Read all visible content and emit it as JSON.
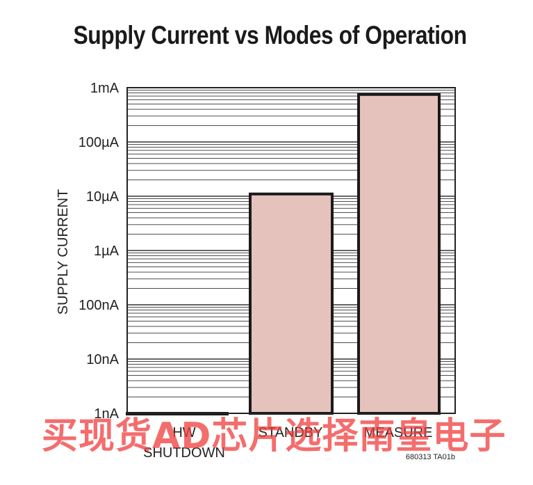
{
  "chart_data": {
    "type": "bar",
    "title": "Supply Current vs Modes of Operation",
    "ylabel": "SUPPLY CURRENT",
    "xlabel": "",
    "yscale": "log",
    "ylim": [
      1e-09,
      0.001
    ],
    "yticks": [
      {
        "value": 1e-09,
        "label": "1nA"
      },
      {
        "value": 1e-08,
        "label": "10nA"
      },
      {
        "value": 1e-07,
        "label": "100nA"
      },
      {
        "value": 1e-06,
        "label": "1µA"
      },
      {
        "value": 1e-05,
        "label": "10µA"
      },
      {
        "value": 0.0001,
        "label": "100µA"
      },
      {
        "value": 0.001,
        "label": "1mA"
      }
    ],
    "categories": [
      {
        "label": "HW",
        "label2": "SHUTDOWN"
      },
      {
        "label": "STANDBY",
        "label2": ""
      },
      {
        "label": "MEASURE",
        "label2": ""
      }
    ],
    "values": [
      1e-09,
      1.1e-05,
      0.00075
    ],
    "bar_color": "#e6c2bd",
    "grid": "log minor"
  },
  "figure_id": "680313 TA01b",
  "watermark": "买现货AD芯片选择南皇电子"
}
